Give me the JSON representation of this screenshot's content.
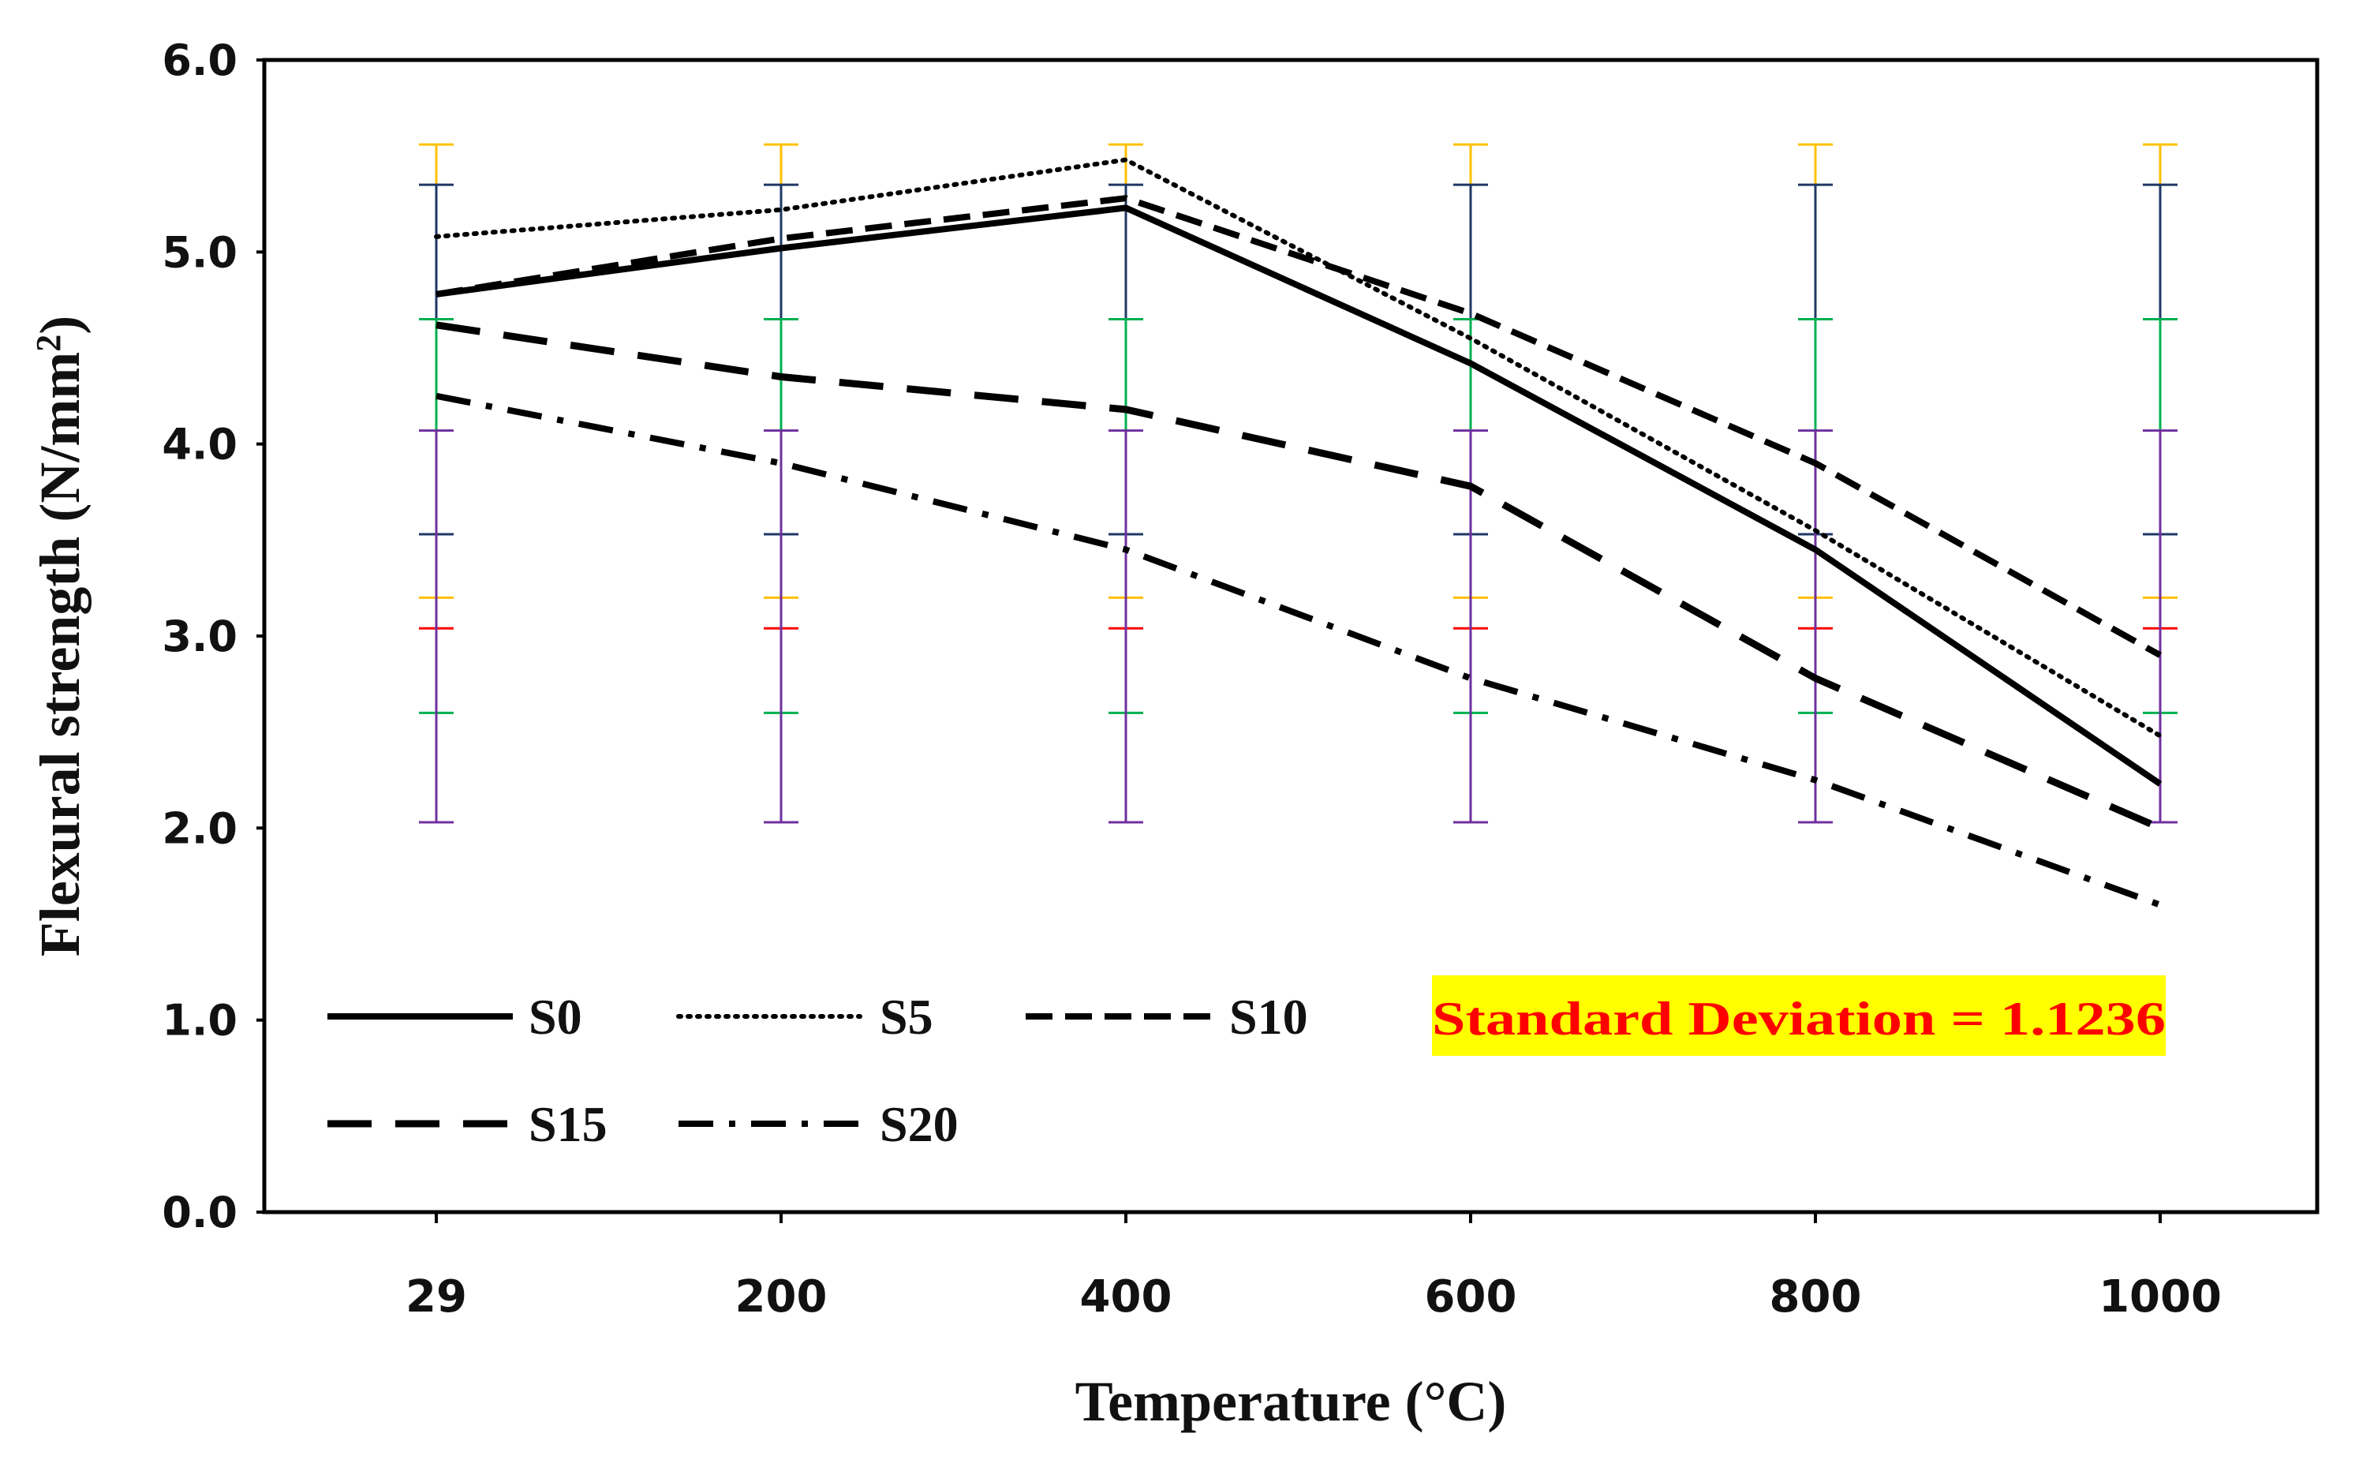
{
  "chart_data": {
    "type": "line",
    "title": "",
    "xlabel": "Temperature (°C)",
    "ylabel_main": "Flexural strength (N/mm",
    "ylabel_sup": "2",
    "ylabel_end": ")",
    "categories": [
      "29",
      "200",
      "400",
      "600",
      "800",
      "1000"
    ],
    "ylim": [
      0,
      6
    ],
    "yticks": [
      "0.0",
      "1.0",
      "2.0",
      "3.0",
      "4.0",
      "5.0",
      "6.0"
    ],
    "ytick_values": [
      0,
      1,
      2,
      3,
      4,
      5,
      6
    ],
    "series": [
      {
        "name": "S0",
        "style": "solid",
        "values": [
          4.78,
          5.02,
          5.23,
          4.42,
          3.45,
          2.23
        ]
      },
      {
        "name": "S5",
        "style": "dotted",
        "values": [
          5.08,
          5.22,
          5.48,
          4.55,
          3.55,
          2.48
        ]
      },
      {
        "name": "S10",
        "style": "dashed",
        "values": [
          4.78,
          5.07,
          5.28,
          4.68,
          3.9,
          2.9
        ]
      },
      {
        "name": "S15",
        "style": "longdash",
        "values": [
          4.62,
          4.35,
          4.18,
          3.78,
          2.78,
          2.0
        ]
      },
      {
        "name": "S20",
        "style": "dashdot",
        "values": [
          4.25,
          3.9,
          3.45,
          2.78,
          2.25,
          1.6
        ]
      }
    ],
    "error_bars": [
      {
        "name": "yellow",
        "color": "#ffc000",
        "low": 3.2,
        "high": 5.56
      },
      {
        "name": "navy",
        "color": "#1f3864",
        "low": 3.53,
        "high": 5.35
      },
      {
        "name": "green",
        "color": "#00b050",
        "low": 2.6,
        "high": 4.65
      },
      {
        "name": "red",
        "color": "#ff0000",
        "low": 3.04,
        "high": 3.04
      },
      {
        "name": "purple",
        "color": "#7030a0",
        "low": 2.03,
        "high": 4.07
      }
    ],
    "annotation": {
      "text": "Standard Deviation = 1.1236",
      "text_color": "#ff0000",
      "background": "#ffff00"
    },
    "legend_position": "bottom-left inside plot",
    "grid": false
  }
}
